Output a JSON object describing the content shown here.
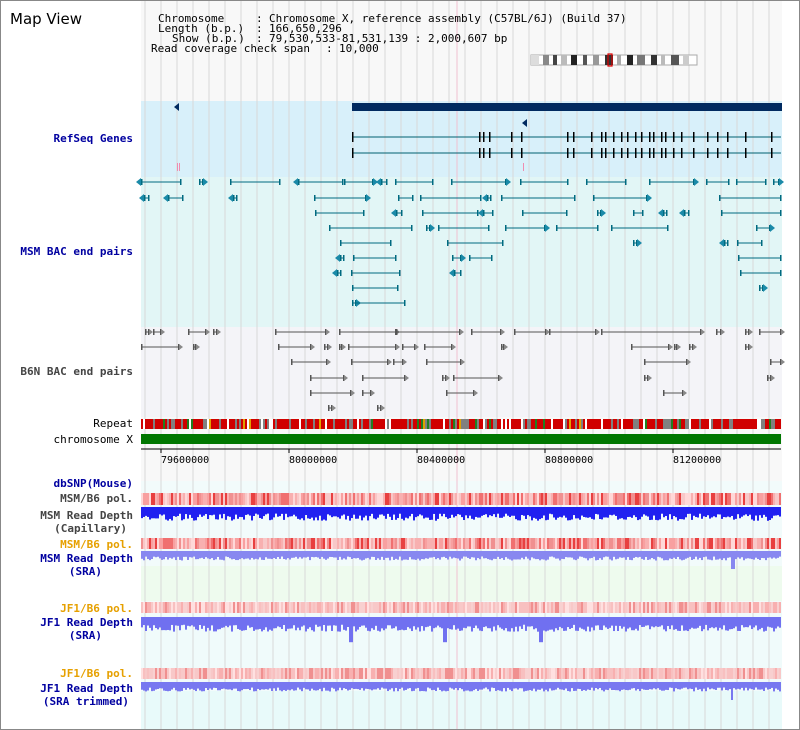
{
  "title": "Map View",
  "header": {
    "chromosome_key": "Chromosome",
    "chromosome_sep": ":",
    "chromosome_val": "Chromosome X, reference assembly (C57BL/6J) (Build 37)",
    "length_key": "Length (b.p.)",
    "length_sep": ":",
    "length_val": "166,650,296",
    "show_key": "Show (b.p.)",
    "show_sep": ":",
    "show_val": "79,530,533-81,531,139 : 2,000,607 bp",
    "span_key": "Read coverage check span",
    "span_sep": ":",
    "span_val": "10,000"
  },
  "tracks": {
    "refseq": "RefSeq Genes",
    "msm_bac": "MSM BAC end pairs",
    "b6n_bac": "B6N BAC end pairs",
    "repeat": "Repeat",
    "chromosome": "chromosome X",
    "dbsnp": "dbSNP(Mouse)",
    "msm_b6_pol_1": "MSM/B6 pol.",
    "msm_depth_cap_1": "MSM Read Depth",
    "msm_depth_cap_2": "(Capillary)",
    "msm_b6_pol_2": "MSM/B6 pol.",
    "msm_depth_sra_1": "MSM Read Depth",
    "msm_depth_sra_2": "(SRA)",
    "jf1_b6_pol_1": "JF1/B6 pol.",
    "jf1_depth_sra_1": "JF1 Read Depth",
    "jf1_depth_sra_2": "(SRA)",
    "jf1_b6_pol_2": "JF1/B6 pol.",
    "jf1_depth_trim_1": "JF1 Read Depth",
    "jf1_depth_trim_2": "(SRA trimmed)"
  },
  "axis": {
    "ticks": [
      "79600000",
      "80000000",
      "80400000",
      "80800000",
      "81200000"
    ]
  },
  "colors": {
    "refseq_bg": "#d8f0fa",
    "msm_bg": "#e2f6f6",
    "b6n_bg": "#f4f4f8",
    "chrom": "#007700",
    "depth_blue": "#1c1cf0",
    "depth_light": "#8080f0",
    "pol_red": "#f06060",
    "label_blue": "#0000a0",
    "label_orange": "#e6a000"
  }
}
